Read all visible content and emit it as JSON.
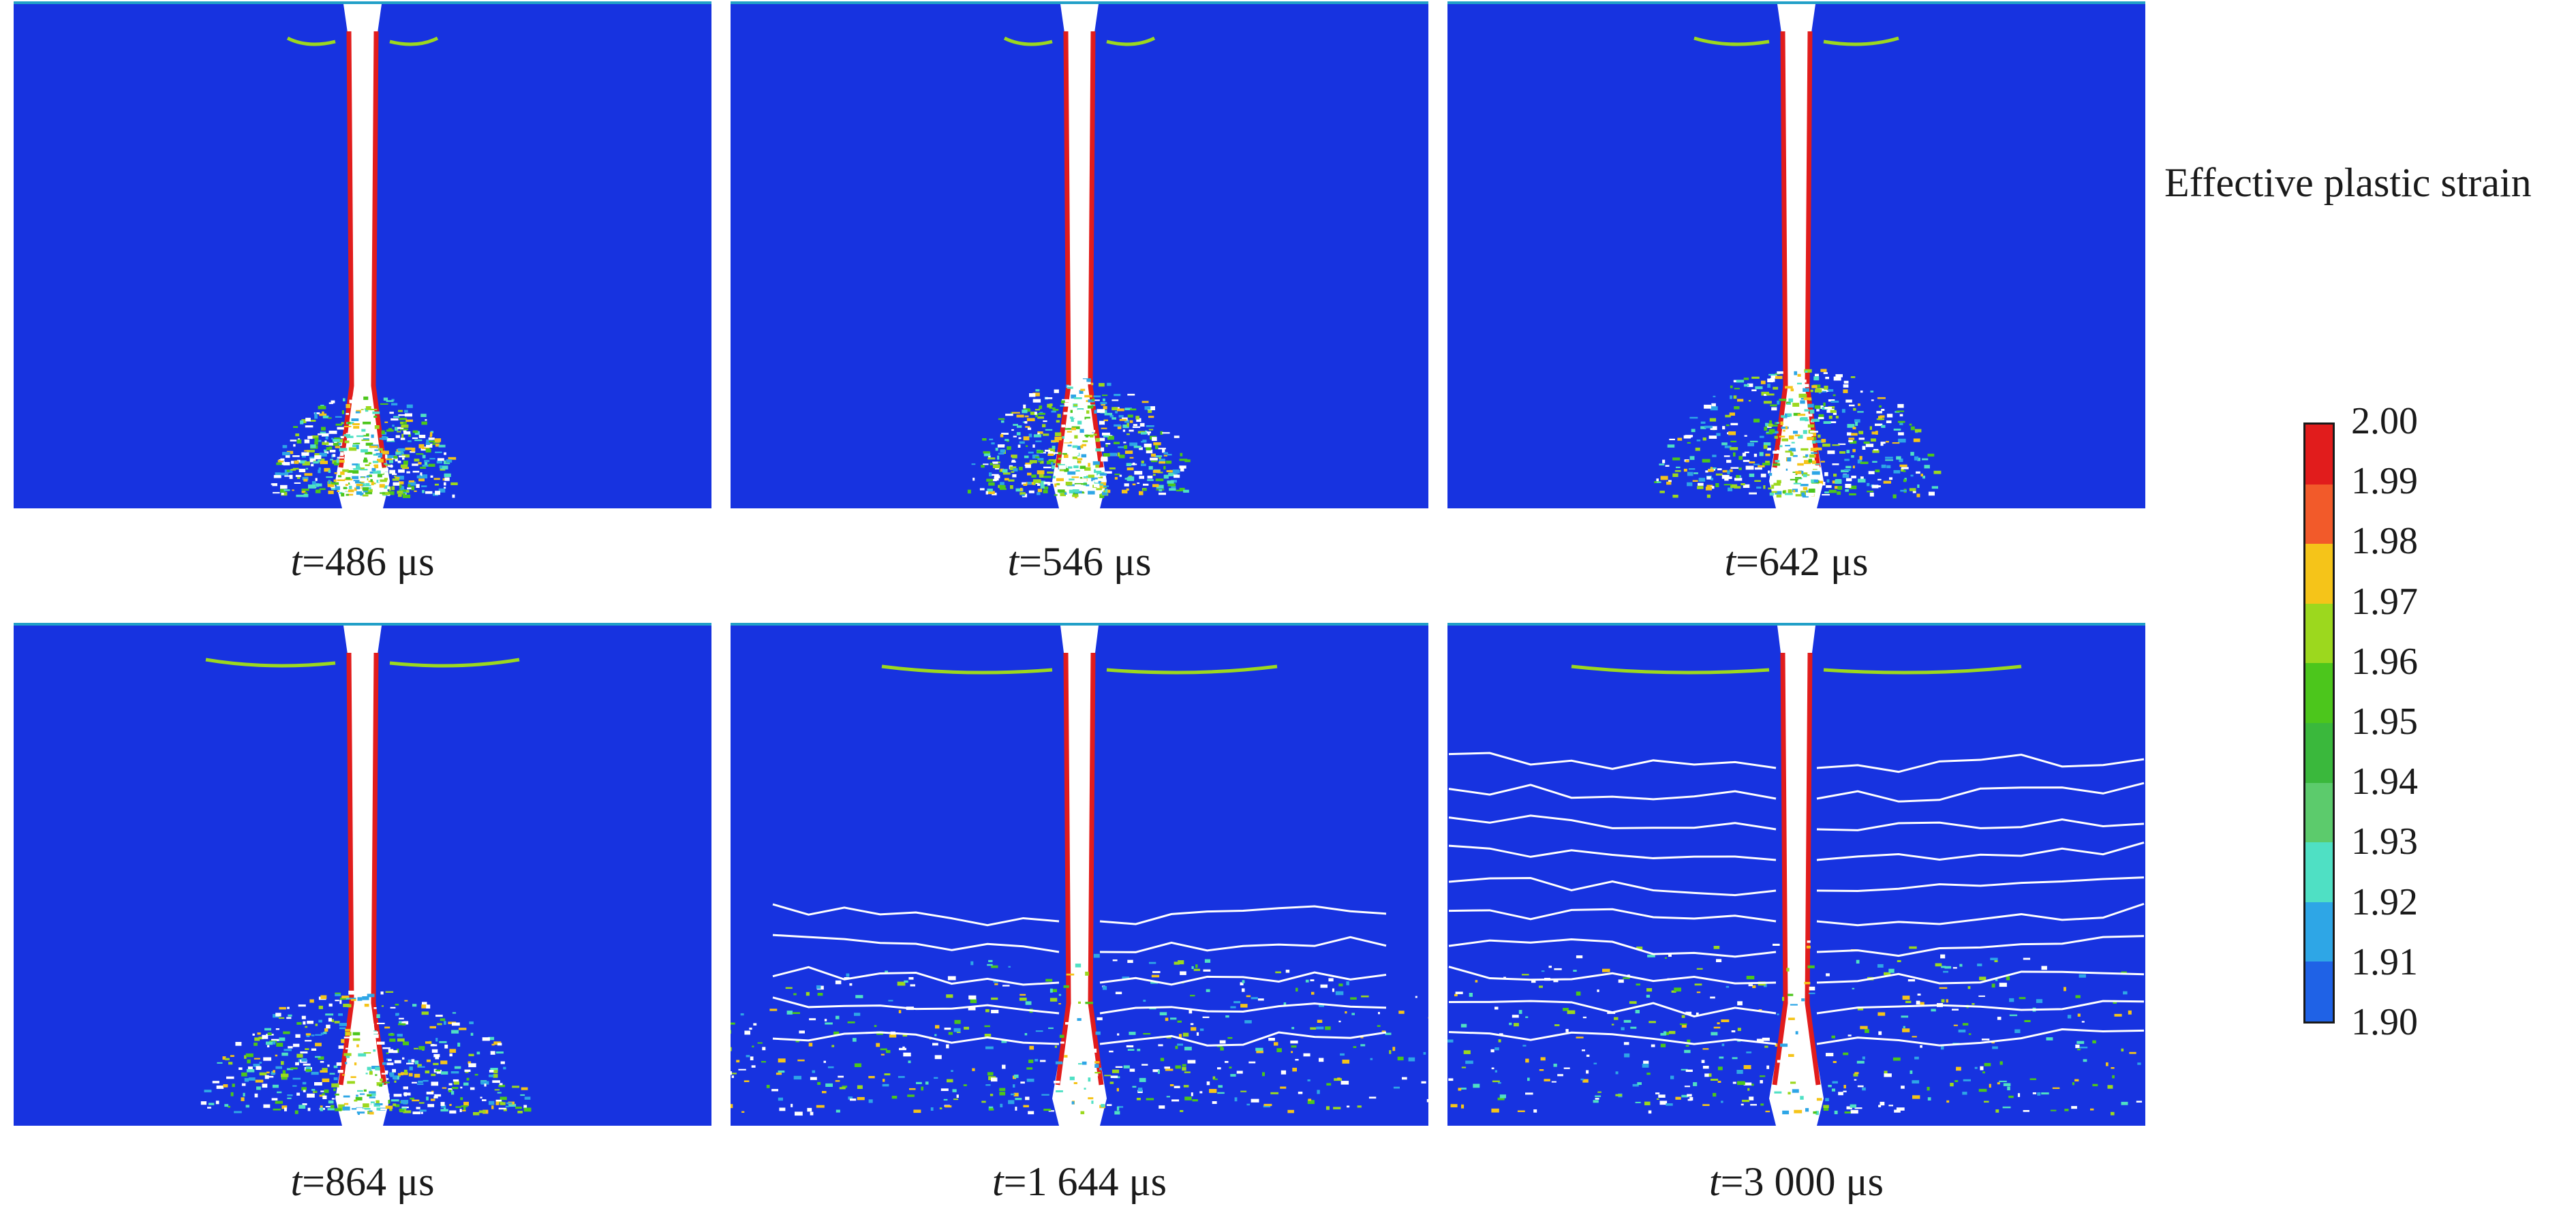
{
  "figure": {
    "legend_title": "Effective plastic strain",
    "legend_ticks": [
      "2.00",
      "1.99",
      "1.98",
      "1.97",
      "1.96",
      "1.95",
      "1.94",
      "1.93",
      "1.92",
      "1.91",
      "1.90"
    ],
    "legend_colors": [
      "#e11c1c",
      "#f25a2a",
      "#f5c419",
      "#9cd81e",
      "#4cc61c",
      "#3ab83c",
      "#5ccb6c",
      "#4fe0c4",
      "#2ea6e6",
      "#1f62e6"
    ],
    "panels": [
      {
        "t_label": "t",
        "time": "=486 μs"
      },
      {
        "t_label": "t",
        "time": "=546 μs"
      },
      {
        "t_label": "t",
        "time": "=642 μs"
      },
      {
        "t_label": "t",
        "time": "=864 μs"
      },
      {
        "t_label": "t",
        "time": "=1 644 μs"
      },
      {
        "t_label": "t",
        "time": "=3 000 μs"
      }
    ]
  }
}
